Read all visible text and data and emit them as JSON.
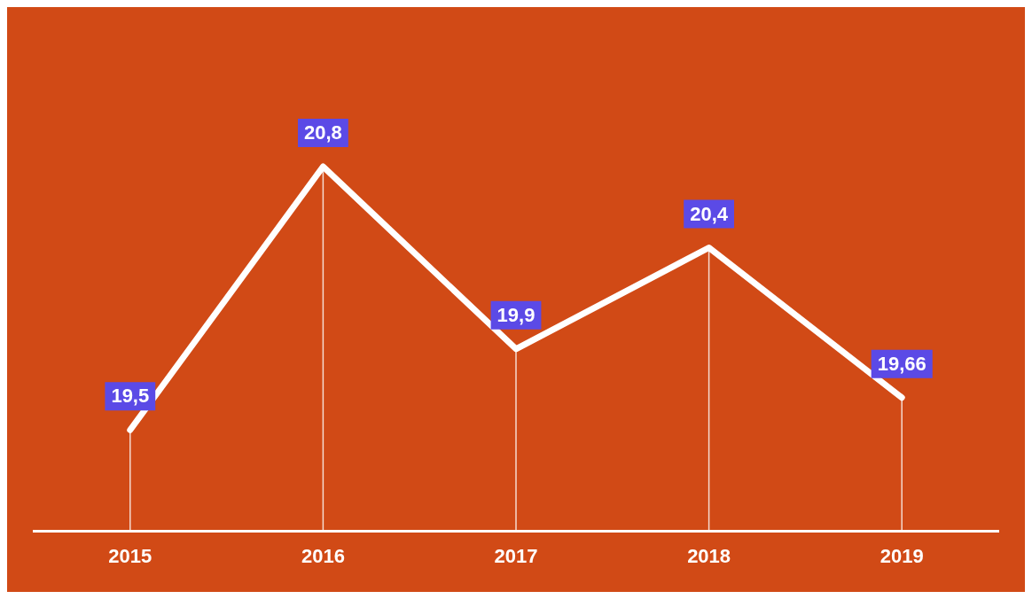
{
  "chart_data": {
    "type": "line",
    "categories": [
      "2015",
      "2016",
      "2017",
      "2018",
      "2019"
    ],
    "series": [
      {
        "color": "#ffffff",
        "values": [
          19.5,
          20.8,
          19.9,
          20.4,
          19.66
        ],
        "value_labels": [
          "19,5",
          "20,8",
          "19,9",
          "20,4",
          "19,66"
        ]
      }
    ],
    "grid": "x",
    "legend": false,
    "marker": "none",
    "line_style": "solid"
  }
}
